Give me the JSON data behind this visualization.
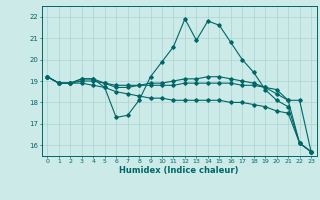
{
  "xlabel": "Humidex (Indice chaleur)",
  "bg_color": "#cceae8",
  "grid_color": "#aad4d2",
  "line_color": "#006666",
  "xlim_min": -0.5,
  "xlim_max": 23.5,
  "ylim_min": 15.5,
  "ylim_max": 22.5,
  "yticks": [
    16,
    17,
    18,
    19,
    20,
    21,
    22
  ],
  "xticks": [
    0,
    1,
    2,
    3,
    4,
    5,
    6,
    7,
    8,
    9,
    10,
    11,
    12,
    13,
    14,
    15,
    16,
    17,
    18,
    19,
    20,
    21,
    22,
    23
  ],
  "series": [
    [
      19.2,
      18.9,
      18.9,
      19.1,
      19.1,
      18.7,
      17.3,
      17.4,
      18.1,
      19.2,
      19.9,
      20.6,
      21.9,
      20.9,
      21.8,
      21.6,
      20.8,
      20.0,
      19.4,
      18.6,
      18.1,
      17.8,
      16.1,
      15.7
    ],
    [
      19.2,
      18.9,
      18.9,
      19.0,
      19.0,
      18.9,
      18.8,
      18.8,
      18.8,
      18.8,
      18.8,
      18.8,
      18.9,
      18.9,
      18.9,
      18.9,
      18.9,
      18.8,
      18.8,
      18.7,
      18.6,
      18.1,
      18.1,
      15.7
    ],
    [
      19.2,
      18.9,
      18.9,
      19.1,
      19.1,
      18.9,
      18.7,
      18.7,
      18.8,
      18.9,
      18.9,
      19.0,
      19.1,
      19.1,
      19.2,
      19.2,
      19.1,
      19.0,
      18.9,
      18.7,
      18.4,
      18.1,
      16.1,
      15.7
    ],
    [
      19.2,
      18.9,
      18.9,
      18.9,
      18.8,
      18.7,
      18.5,
      18.4,
      18.3,
      18.2,
      18.2,
      18.1,
      18.1,
      18.1,
      18.1,
      18.1,
      18.0,
      18.0,
      17.9,
      17.8,
      17.6,
      17.5,
      16.1,
      15.7
    ]
  ]
}
